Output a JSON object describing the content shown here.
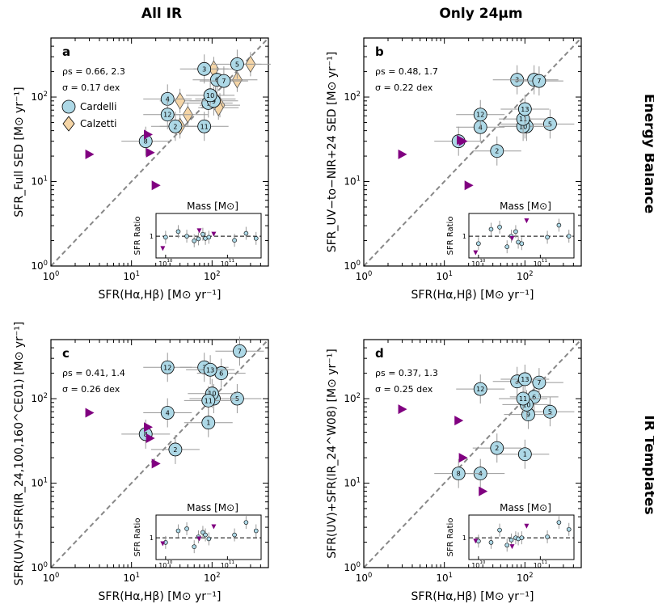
{
  "column_titles": [
    "All IR",
    "Only 24μm"
  ],
  "row_titles": [
    "Energy Balance",
    "IR Templates"
  ],
  "legend": {
    "cardelli": "Cardelli",
    "calzetti": "Calzetti"
  },
  "colors": {
    "cardelli": "#add8e6",
    "calzetti": "#f5d5a6",
    "triangle": "#800080",
    "errorbar": "#999999",
    "diagonal": "#888888"
  },
  "chart_data": [
    {
      "type": "scatter",
      "panel": "a",
      "stat1": "ρs = 0.66, 2.3",
      "stat2": "σ = 0.17 dex",
      "xlabel": "SFR(Hα,Hβ) [M⊙ yr⁻¹]",
      "ylabel": "SFR_Full SED [M⊙ yr⁻¹]",
      "xlim": [
        1,
        500
      ],
      "ylim": [
        1,
        500
      ],
      "xticks": [
        "10^0",
        "10^1",
        "10^2"
      ],
      "yticks": [
        "10^0",
        "10^1",
        "10^2"
      ],
      "inset": {
        "label": "Mass [M⊙]",
        "ylabel": "SFR Ratio",
        "xticks": [
          "10^10",
          "10^11"
        ],
        "ytick": "1"
      },
      "cardelli": [
        {
          "id": "1",
          "x": 90,
          "y": 85
        },
        {
          "id": "2",
          "x": 35,
          "y": 45
        },
        {
          "id": "3",
          "x": 80,
          "y": 215
        },
        {
          "id": "4",
          "x": 28,
          "y": 95
        },
        {
          "id": "5",
          "x": 205,
          "y": 245
        },
        {
          "id": "6",
          "x": 115,
          "y": 160
        },
        {
          "id": "7",
          "x": 140,
          "y": 155
        },
        {
          "id": "8",
          "x": 15,
          "y": 30
        },
        {
          "id": "9",
          "x": 105,
          "y": 90
        },
        {
          "id": "10",
          "x": 95,
          "y": 105
        },
        {
          "id": "11",
          "x": 80,
          "y": 45
        },
        {
          "id": "12",
          "x": 28,
          "y": 62
        }
      ],
      "calzetti": [
        {
          "x": 105,
          "y": 215
        },
        {
          "x": 300,
          "y": 245
        },
        {
          "x": 205,
          "y": 160
        },
        {
          "x": 125,
          "y": 80
        },
        {
          "x": 40,
          "y": 90
        },
        {
          "x": 40,
          "y": 45
        },
        {
          "x": 120,
          "y": 75
        },
        {
          "x": 110,
          "y": 95
        },
        {
          "x": 50,
          "y": 62
        }
      ],
      "triangles": [
        {
          "x": 3,
          "y": 21
        },
        {
          "x": 16,
          "y": 36
        },
        {
          "x": 17,
          "y": 22
        },
        {
          "x": 20,
          "y": 9
        }
      ],
      "inset_cardelli": [
        {
          "m": 10000000000.0,
          "r": 0.95
        },
        {
          "m": 16000000000.0,
          "r": 1.25
        },
        {
          "m": 22000000000.0,
          "r": 1.0
        },
        {
          "m": 29000000000.0,
          "r": 0.8
        },
        {
          "m": 34000000000.0,
          "r": 0.88
        },
        {
          "m": 40000000000.0,
          "r": 1.1
        },
        {
          "m": 44000000000.0,
          "r": 0.9
        },
        {
          "m": 50000000000.0,
          "r": 0.95
        },
        {
          "m": 130000000000.0,
          "r": 0.82
        },
        {
          "m": 200000000000.0,
          "r": 1.15
        },
        {
          "m": 290000000000.0,
          "r": 0.9
        }
      ],
      "inset_triangles": [
        {
          "m": 9000000000.0,
          "r": 0.55
        },
        {
          "m": 35000000000.0,
          "r": 1.3
        },
        {
          "m": 60000000000.0,
          "r": 1.1
        }
      ]
    },
    {
      "type": "scatter",
      "panel": "b",
      "stat1": "ρs = 0.48, 1.7",
      "stat2": "σ = 0.22 dex",
      "xlabel": "SFR(Hα,Hβ) [M⊙ yr⁻¹]",
      "ylabel": "SFR_UV−to−NIR+24 SED [M⊙ yr⁻¹]",
      "xlim": [
        1,
        500
      ],
      "ylim": [
        1,
        500
      ],
      "xticks": [
        "10^0",
        "10^1",
        "10^2"
      ],
      "yticks": [
        "10^0",
        "10^1",
        "10^2"
      ],
      "inset": {
        "label": "Mass [M⊙]",
        "ylabel": "SFR Ratio",
        "xticks": [
          "10^10",
          "10^11"
        ],
        "ytick": "1"
      },
      "cardelli": [
        {
          "id": "1",
          "x": 100,
          "y": 48
        },
        {
          "id": "2",
          "x": 45,
          "y": 23
        },
        {
          "id": "3",
          "x": 80,
          "y": 160
        },
        {
          "id": "4",
          "x": 28,
          "y": 44
        },
        {
          "id": "5",
          "x": 205,
          "y": 48
        },
        {
          "id": "6",
          "x": 130,
          "y": 160
        },
        {
          "id": "7",
          "x": 150,
          "y": 155
        },
        {
          "id": "8",
          "x": 15,
          "y": 30
        },
        {
          "id": "9",
          "x": 105,
          "y": 45
        },
        {
          "id": "10",
          "x": 95,
          "y": 45
        },
        {
          "id": "11",
          "x": 95,
          "y": 55
        },
        {
          "id": "12",
          "x": 28,
          "y": 62
        },
        {
          "id": "13",
          "x": 100,
          "y": 72
        }
      ],
      "calzetti": [],
      "triangles": [
        {
          "x": 3,
          "y": 21
        },
        {
          "x": 16,
          "y": 31
        },
        {
          "x": 17,
          "y": 30
        },
        {
          "x": 20,
          "y": 9
        }
      ],
      "inset_cardelli": [
        {
          "m": 10000000000.0,
          "r": 0.7
        },
        {
          "m": 16000000000.0,
          "r": 1.4
        },
        {
          "m": 22000000000.0,
          "r": 1.55
        },
        {
          "m": 29000000000.0,
          "r": 0.6
        },
        {
          "m": 34000000000.0,
          "r": 1.0
        },
        {
          "m": 40000000000.0,
          "r": 1.25
        },
        {
          "m": 44000000000.0,
          "r": 0.75
        },
        {
          "m": 50000000000.0,
          "r": 0.7
        },
        {
          "m": 130000000000.0,
          "r": 0.95
        },
        {
          "m": 200000000000.0,
          "r": 1.7
        },
        {
          "m": 290000000000.0,
          "r": 1.0
        }
      ],
      "inset_triangles": [
        {
          "m": 9000000000.0,
          "r": 0.45
        },
        {
          "m": 35000000000.0,
          "r": 0.9
        },
        {
          "m": 60000000000.0,
          "r": 2.1
        }
      ]
    },
    {
      "type": "scatter",
      "panel": "c",
      "stat1": "ρs = 0.41, 1.4",
      "stat2": "σ = 0.26 dex",
      "xlabel": "SFR(Hα,Hβ) [M⊙ yr⁻¹]",
      "ylabel": "SFR(UV)+SFR(IR_24,100,160^CE01) [M⊙ yr⁻¹]",
      "xlim": [
        1,
        500
      ],
      "ylim": [
        1,
        500
      ],
      "xticks": [
        "10^0",
        "10^1",
        "10^2"
      ],
      "yticks": [
        "10^0",
        "10^1",
        "10^2"
      ],
      "inset": {
        "label": "Mass [M⊙]",
        "ylabel": "SFR Ratio",
        "xticks": [
          "10^10",
          "10^11"
        ],
        "ytick": "1"
      },
      "cardelli": [
        {
          "id": "1",
          "x": 90,
          "y": 52
        },
        {
          "id": "2",
          "x": 35,
          "y": 25
        },
        {
          "id": "3",
          "x": 80,
          "y": 235
        },
        {
          "id": "4",
          "x": 28,
          "y": 68
        },
        {
          "id": "5",
          "x": 205,
          "y": 100
        },
        {
          "id": "6",
          "x": 130,
          "y": 200
        },
        {
          "id": "7",
          "x": 220,
          "y": 365
        },
        {
          "id": "8",
          "x": 15,
          "y": 38
        },
        {
          "id": "9",
          "x": 105,
          "y": 100
        },
        {
          "id": "10",
          "x": 100,
          "y": 115
        },
        {
          "id": "11",
          "x": 90,
          "y": 95
        },
        {
          "id": "12",
          "x": 28,
          "y": 235
        },
        {
          "id": "13",
          "x": 95,
          "y": 220
        }
      ],
      "calzetti": [],
      "triangles": [
        {
          "x": 3,
          "y": 68
        },
        {
          "x": 16,
          "y": 46
        },
        {
          "x": 17,
          "y": 34
        },
        {
          "x": 20,
          "y": 17
        }
      ],
      "inset_cardelli": [
        {
          "m": 10000000000.0,
          "r": 0.8
        },
        {
          "m": 16000000000.0,
          "r": 1.4
        },
        {
          "m": 22000000000.0,
          "r": 1.55
        },
        {
          "m": 29000000000.0,
          "r": 0.65
        },
        {
          "m": 34000000000.0,
          "r": 1.05
        },
        {
          "m": 40000000000.0,
          "r": 1.3
        },
        {
          "m": 44000000000.0,
          "r": 1.15
        },
        {
          "m": 50000000000.0,
          "r": 0.95
        },
        {
          "m": 130000000000.0,
          "r": 1.15
        },
        {
          "m": 200000000000.0,
          "r": 2.1
        },
        {
          "m": 290000000000.0,
          "r": 1.4
        }
      ],
      "inset_triangles": [
        {
          "m": 9000000000.0,
          "r": 0.75
        },
        {
          "m": 35000000000.0,
          "r": 0.95
        },
        {
          "m": 60000000000.0,
          "r": 1.7
        }
      ]
    },
    {
      "type": "scatter",
      "panel": "d",
      "stat1": "ρs = 0.37, 1.3",
      "stat2": "σ = 0.25 dex",
      "xlabel": "SFR(Hα,Hβ) [M⊙ yr⁻¹]",
      "ylabel": "SFR(UV)+SFR(IR_24^W08) [M⊙ yr⁻¹]",
      "xlim": [
        1,
        500
      ],
      "ylim": [
        1,
        500
      ],
      "xticks": [
        "10^0",
        "10^1",
        "10^2"
      ],
      "yticks": [
        "10^0",
        "10^1",
        "10^2"
      ],
      "inset": {
        "label": "Mass [M⊙]",
        "ylabel": "SFR Ratio",
        "xticks": [
          "10^10",
          "10^11"
        ],
        "ytick": "1"
      },
      "cardelli": [
        {
          "id": "1",
          "x": 100,
          "y": 22
        },
        {
          "id": "2",
          "x": 45,
          "y": 26
        },
        {
          "id": "3",
          "x": 80,
          "y": 160
        },
        {
          "id": "4",
          "x": 28,
          "y": 13
        },
        {
          "id": "5",
          "x": 205,
          "y": 70
        },
        {
          "id": "6",
          "x": 130,
          "y": 105
        },
        {
          "id": "7",
          "x": 150,
          "y": 155
        },
        {
          "id": "8",
          "x": 15,
          "y": 13
        },
        {
          "id": "9",
          "x": 110,
          "y": 65
        },
        {
          "id": "10",
          "x": 105,
          "y": 85
        },
        {
          "id": "11",
          "x": 95,
          "y": 100
        },
        {
          "id": "12",
          "x": 28,
          "y": 130
        },
        {
          "id": "13",
          "x": 100,
          "y": 170
        }
      ],
      "calzetti": [],
      "triangles": [
        {
          "x": 3,
          "y": 75
        },
        {
          "x": 15,
          "y": 55
        },
        {
          "x": 17,
          "y": 20
        },
        {
          "x": 30,
          "y": 8
        }
      ],
      "inset_cardelli": [
        {
          "m": 10000000000.0,
          "r": 0.85
        },
        {
          "m": 16000000000.0,
          "r": 0.8
        },
        {
          "m": 22000000000.0,
          "r": 1.45
        },
        {
          "m": 29000000000.0,
          "r": 0.7
        },
        {
          "m": 34000000000.0,
          "r": 0.9
        },
        {
          "m": 40000000000.0,
          "r": 1.0
        },
        {
          "m": 44000000000.0,
          "r": 0.95
        },
        {
          "m": 50000000000.0,
          "r": 1.0
        },
        {
          "m": 130000000000.0,
          "r": 1.05
        },
        {
          "m": 200000000000.0,
          "r": 2.1
        },
        {
          "m": 290000000000.0,
          "r": 1.5
        }
      ],
      "inset_triangles": [
        {
          "m": 9000000000.0,
          "r": 0.85
        },
        {
          "m": 35000000000.0,
          "r": 0.65
        },
        {
          "m": 60000000000.0,
          "r": 1.75
        }
      ]
    }
  ]
}
